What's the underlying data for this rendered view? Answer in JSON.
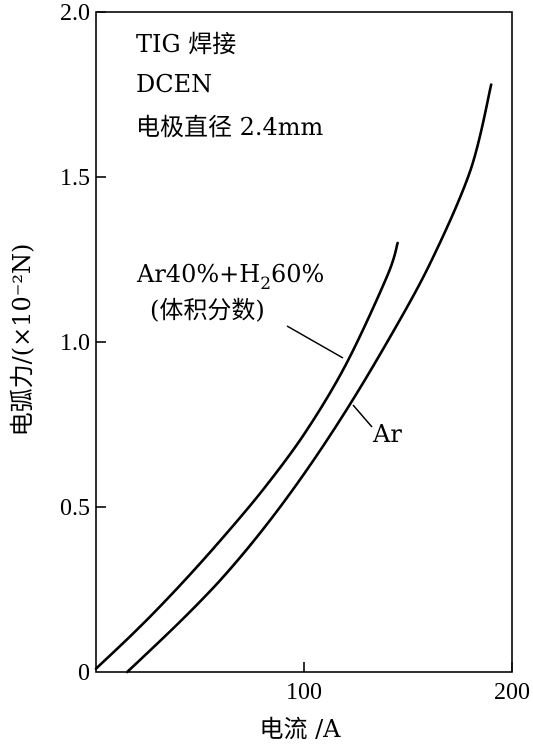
{
  "chart_data": {
    "type": "line",
    "xlabel": "电流 /A",
    "ylabel": "电弧力/(×10⁻²N)",
    "xlim": [
      0,
      200
    ],
    "ylim": [
      0,
      2.0
    ],
    "x_ticks": [
      "100",
      "200"
    ],
    "y_ticks": [
      "0.5",
      "1.0",
      "1.5",
      "2.0"
    ],
    "origin_label": "0",
    "grid": false,
    "annotations": [
      "TIG 焊接",
      "DCEN",
      "电极直径 2.4mm"
    ],
    "series": [
      {
        "name": "Ar40%+H₂60%(体积分数)",
        "label_line1": "Ar40%+H₂60%",
        "label_line2": "(体积分数)",
        "points": [
          [
            0,
            0.01
          ],
          [
            20,
            0.13
          ],
          [
            40,
            0.26
          ],
          [
            60,
            0.4
          ],
          [
            80,
            0.55
          ],
          [
            100,
            0.72
          ],
          [
            120,
            0.93
          ],
          [
            140,
            1.2
          ],
          [
            145,
            1.3
          ]
        ]
      },
      {
        "name": "Ar",
        "label_line1": "Ar",
        "points": [
          [
            15,
            0.0
          ],
          [
            40,
            0.15
          ],
          [
            60,
            0.28
          ],
          [
            80,
            0.43
          ],
          [
            100,
            0.6
          ],
          [
            120,
            0.79
          ],
          [
            140,
            1.0
          ],
          [
            160,
            1.23
          ],
          [
            180,
            1.52
          ],
          [
            190,
            1.78
          ]
        ]
      }
    ]
  }
}
